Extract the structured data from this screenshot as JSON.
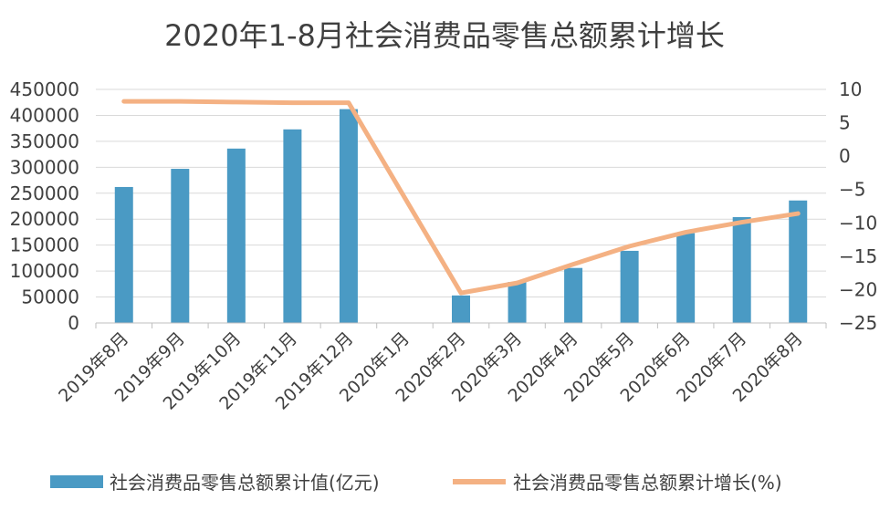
{
  "chart_data": {
    "type": "bar+line",
    "title": "2020年1-8月社会消费品零售总额累计增长",
    "categories": [
      "2019年8月",
      "2019年9月",
      "2019年10月",
      "2019年11月",
      "2019年12月",
      "2020年1月",
      "2020年2月",
      "2020年3月",
      "2020年4月",
      "2020年5月",
      "2020年6月",
      "2020年7月",
      "2020年8月"
    ],
    "series": [
      {
        "name": "社会消费品零售总额累计值(亿元)",
        "type": "bar",
        "axis": "left",
        "color": "#4a9ac4",
        "values": [
          262000,
          297000,
          336000,
          373000,
          412000,
          null,
          53000,
          79000,
          106000,
          139000,
          173000,
          204000,
          236000
        ]
      },
      {
        "name": "社会消费品零售总额累计增长(%)",
        "type": "line",
        "axis": "right",
        "color": "#f4b183",
        "values": [
          8.2,
          8.2,
          8.1,
          8.0,
          8.0,
          null,
          -20.5,
          -19.0,
          -16.2,
          -13.5,
          -11.4,
          -9.9,
          -8.6
        ]
      }
    ],
    "y_left": {
      "min": 0,
      "max": 450000,
      "ticks": [
        "0",
        "50000",
        "100000",
        "150000",
        "200000",
        "250000",
        "300000",
        "350000",
        "400000",
        "450000"
      ]
    },
    "y_right": {
      "min": -25,
      "max": 10,
      "ticks": [
        "−25",
        "−20",
        "−15",
        "−10",
        "−5",
        "0",
        "5",
        "10"
      ]
    },
    "grid": true,
    "legend_position": "bottom"
  }
}
